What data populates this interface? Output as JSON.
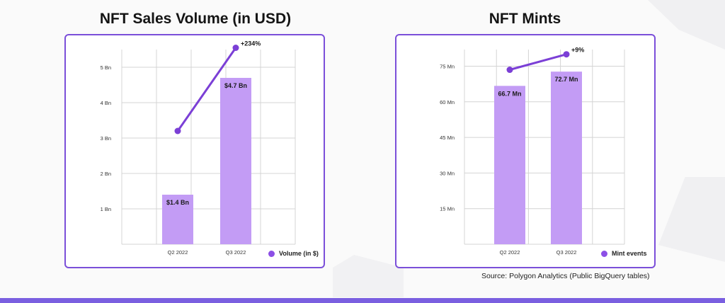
{
  "colors": {
    "bar": "#c39cf5",
    "line": "#7b3fd6",
    "panel_border": "#7b4fd9",
    "grid": "#d4d4d4",
    "bottom_bar": "#7a5fe0"
  },
  "source": "Source: Polygon Analytics (Public BigQuery tables)",
  "chart_data": [
    {
      "type": "bar",
      "title": "NFT Sales Volume (in USD)",
      "categories": [
        "Q2 2022",
        "Q3 2022"
      ],
      "y_ticks": [
        "1 Bn",
        "2 Bn",
        "3 Bn",
        "4 Bn",
        "5 Bn"
      ],
      "ylim": [
        0,
        5.5
      ],
      "series": [
        {
          "name": "Volume (in $)",
          "values": [
            1.4,
            4.7
          ],
          "labels": [
            "$1.4 Bn",
            "$4.7 Bn"
          ]
        }
      ],
      "trend": {
        "values": [
          3.2,
          5.55
        ],
        "annotation": "+234%"
      },
      "legend": {
        "label": "Volume (in $)",
        "position": "bottom-right"
      },
      "grid": true
    },
    {
      "type": "bar",
      "title": "NFT Mints",
      "categories": [
        "Q2 2022",
        "Q3 2022"
      ],
      "y_ticks": [
        "15 Mn",
        "30 Mn",
        "45 Mn",
        "60 Mn",
        "75 Mn"
      ],
      "ylim": [
        0,
        82
      ],
      "series": [
        {
          "name": "Mint events",
          "values": [
            66.7,
            72.7
          ],
          "labels": [
            "66.7 Mn",
            "72.7 Mn"
          ]
        }
      ],
      "trend": {
        "values": [
          73.5,
          80
        ],
        "annotation": "+9%"
      },
      "legend": {
        "label": "Mint events",
        "position": "bottom-right"
      },
      "grid": true
    }
  ]
}
